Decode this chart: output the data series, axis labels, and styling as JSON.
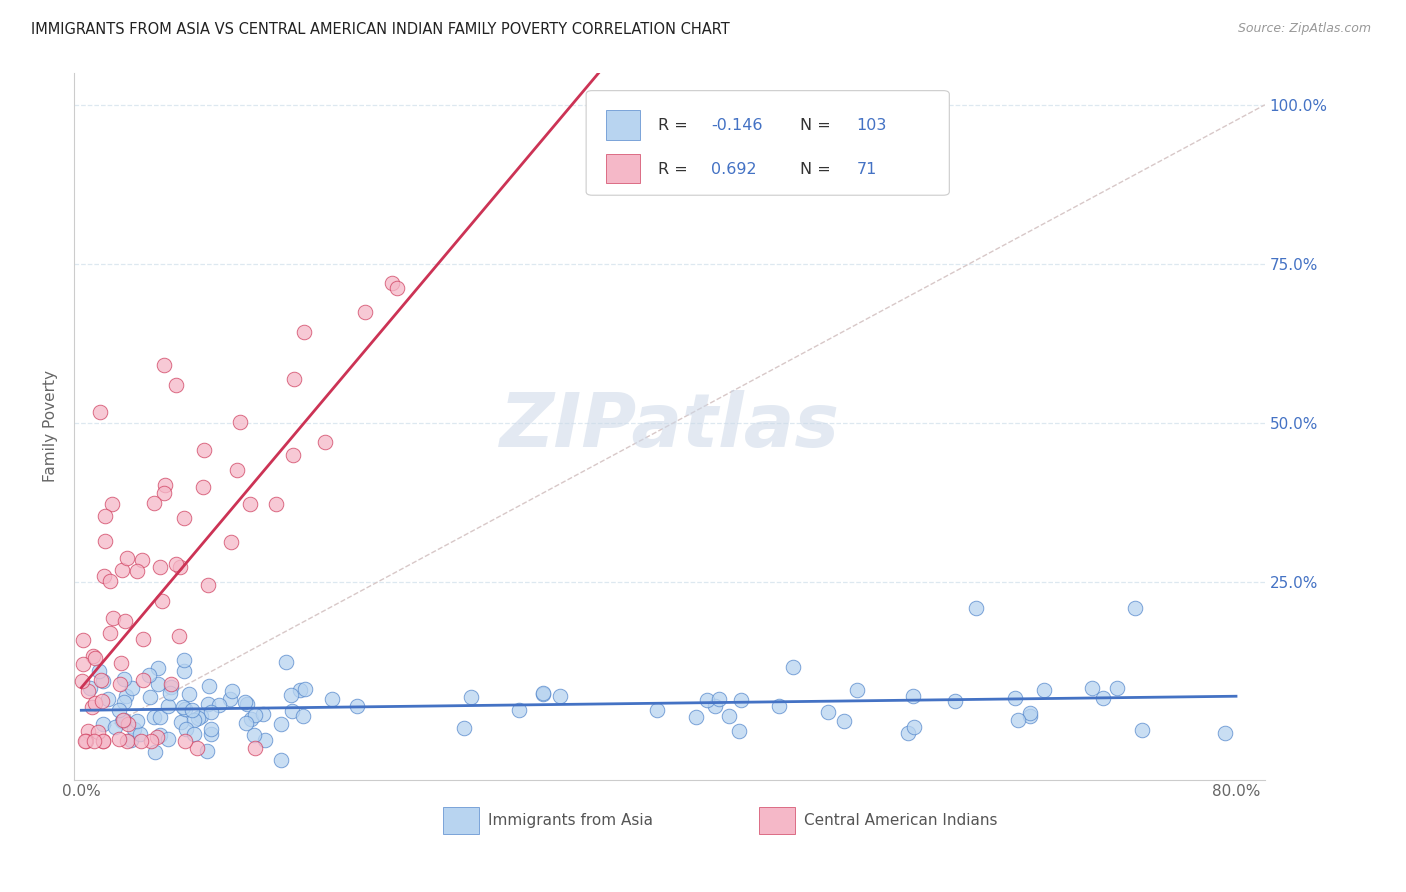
{
  "title": "IMMIGRANTS FROM ASIA VS CENTRAL AMERICAN INDIAN FAMILY POVERTY CORRELATION CHART",
  "source": "Source: ZipAtlas.com",
  "ylabel": "Family Poverty",
  "legend_blue_r": "-0.146",
  "legend_blue_n": "103",
  "legend_pink_r": "0.692",
  "legend_pink_n": "71",
  "blue_fill": "#b8d4f0",
  "pink_fill": "#f5b8c8",
  "blue_edge": "#5588cc",
  "pink_edge": "#d04060",
  "blue_line_color": "#4472c4",
  "pink_line_color": "#cc3355",
  "diagonal_color": "#d8c8c8",
  "grid_color": "#dde8f0",
  "legend_text_color": "#4472c4",
  "title_color": "#222222",
  "watermark_color": "#ccd8e8",
  "background_color": "#ffffff",
  "seed": 42
}
